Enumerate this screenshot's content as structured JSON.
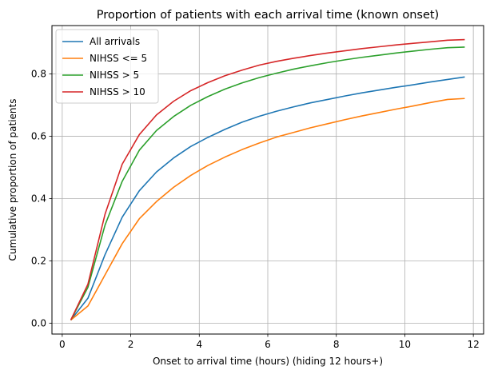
{
  "chart_data": {
    "type": "line",
    "title": "Proportion of patients with each arrival time (known onset)",
    "xlabel": "Onset to arrival time (hours) (hiding 12 hours+)",
    "ylabel": "Cumulative proportion of patients",
    "xlim": [
      -0.3,
      12.3
    ],
    "ylim": [
      -0.035,
      0.955
    ],
    "xticks": [
      0,
      2,
      4,
      6,
      8,
      10,
      12
    ],
    "yticks": [
      0.0,
      0.2,
      0.4,
      0.6,
      0.8
    ],
    "ytick_labels": [
      "0.0",
      "0.2",
      "0.4",
      "0.6",
      "0.8"
    ],
    "grid": true,
    "legend_position": "top-left",
    "x": [
      0.25,
      0.75,
      1.25,
      1.75,
      2.25,
      2.75,
      3.25,
      3.75,
      4.25,
      4.75,
      5.25,
      5.75,
      6.25,
      6.75,
      7.25,
      7.75,
      8.25,
      8.75,
      9.25,
      9.75,
      10.25,
      10.75,
      11.25,
      11.75
    ],
    "series": [
      {
        "name": "All arrivals",
        "color": "#1f77b4",
        "values": [
          0.01,
          0.08,
          0.22,
          0.34,
          0.425,
          0.485,
          0.53,
          0.567,
          0.596,
          0.622,
          0.645,
          0.664,
          0.68,
          0.694,
          0.707,
          0.718,
          0.729,
          0.739,
          0.748,
          0.757,
          0.765,
          0.774,
          0.782,
          0.79
        ]
      },
      {
        "name": "NIHSS <= 5",
        "color": "#ff7f0e",
        "values": [
          0.01,
          0.055,
          0.155,
          0.255,
          0.335,
          0.39,
          0.436,
          0.474,
          0.506,
          0.533,
          0.557,
          0.578,
          0.597,
          0.612,
          0.627,
          0.64,
          0.653,
          0.665,
          0.676,
          0.687,
          0.697,
          0.708,
          0.718,
          0.721
        ]
      },
      {
        "name": "NIHSS > 5",
        "color": "#2ca02c",
        "values": [
          0.01,
          0.115,
          0.315,
          0.455,
          0.555,
          0.618,
          0.663,
          0.699,
          0.727,
          0.751,
          0.771,
          0.788,
          0.802,
          0.815,
          0.826,
          0.836,
          0.845,
          0.853,
          0.86,
          0.867,
          0.873,
          0.879,
          0.884,
          0.886
        ]
      },
      {
        "name": "NIHSS > 10",
        "color": "#d62728",
        "values": [
          0.01,
          0.125,
          0.35,
          0.51,
          0.605,
          0.668,
          0.712,
          0.746,
          0.772,
          0.794,
          0.812,
          0.828,
          0.84,
          0.85,
          0.859,
          0.867,
          0.874,
          0.881,
          0.887,
          0.893,
          0.898,
          0.903,
          0.908,
          0.91
        ]
      }
    ]
  }
}
